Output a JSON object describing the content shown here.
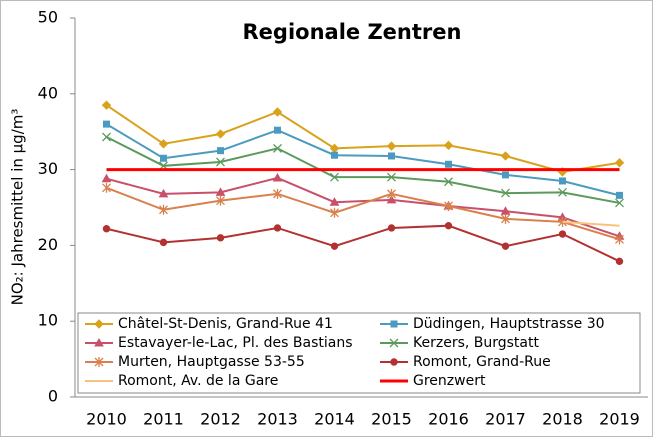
{
  "chart_data": {
    "type": "line",
    "title": "Regionale Zentren",
    "y_label": "NO₂: Jahresmittel in µg/m³",
    "categories": [
      "2010",
      "2011",
      "2012",
      "2013",
      "2014",
      "2015",
      "2016",
      "2017",
      "2018",
      "2019"
    ],
    "ylim": [
      0,
      50
    ],
    "yticks": [
      0,
      10,
      20,
      30,
      40,
      50
    ],
    "legend": "bottom",
    "series": [
      {
        "name": "Châtel-St-Denis, Grand-Rue 41",
        "color": "#d9a21b",
        "marker": "diamond",
        "values": [
          38.5,
          33.4,
          34.7,
          37.6,
          32.8,
          33.1,
          33.2,
          31.8,
          29.7,
          30.9
        ]
      },
      {
        "name": "Düdingen, Hauptstrasse 30",
        "color": "#4b9bc0",
        "marker": "square",
        "values": [
          36.0,
          31.5,
          32.5,
          35.2,
          31.9,
          31.8,
          30.7,
          29.3,
          28.5,
          26.6
        ]
      },
      {
        "name": "Estavayer-le-Lac, Pl. des Bastians",
        "color": "#c8506a",
        "marker": "triangle",
        "values": [
          28.8,
          26.8,
          27.0,
          28.9,
          25.7,
          26.0,
          25.2,
          24.5,
          23.7,
          21.2
        ]
      },
      {
        "name": "Kerzers, Burgstatt",
        "color": "#5c9a5c",
        "marker": "x",
        "values": [
          34.3,
          30.5,
          31.0,
          32.8,
          29.0,
          29.0,
          28.4,
          26.9,
          27.0,
          25.6
        ]
      },
      {
        "name": "Murten, Hauptgasse 53-55",
        "color": "#d9804c",
        "marker": "star",
        "values": [
          27.6,
          24.7,
          25.9,
          26.8,
          24.3,
          26.8,
          25.2,
          23.5,
          23.1,
          20.8
        ]
      },
      {
        "name": "Romont, Grand-Rue",
        "color": "#b23232",
        "marker": "circle",
        "values": [
          22.2,
          20.4,
          21.0,
          22.3,
          19.9,
          22.3,
          22.6,
          19.9,
          21.5,
          17.9
        ]
      },
      {
        "name": "Romont, Av. de la Gare",
        "color": "#f7c27e",
        "marker": "none",
        "values": [
          null,
          null,
          null,
          null,
          null,
          null,
          null,
          null,
          23.1,
          22.6
        ]
      },
      {
        "name": "Grenzwert",
        "color": "#ff0000",
        "marker": "none",
        "width": 3,
        "values": [
          30,
          30,
          30,
          30,
          30,
          30,
          30,
          30,
          30,
          30
        ]
      }
    ]
  }
}
